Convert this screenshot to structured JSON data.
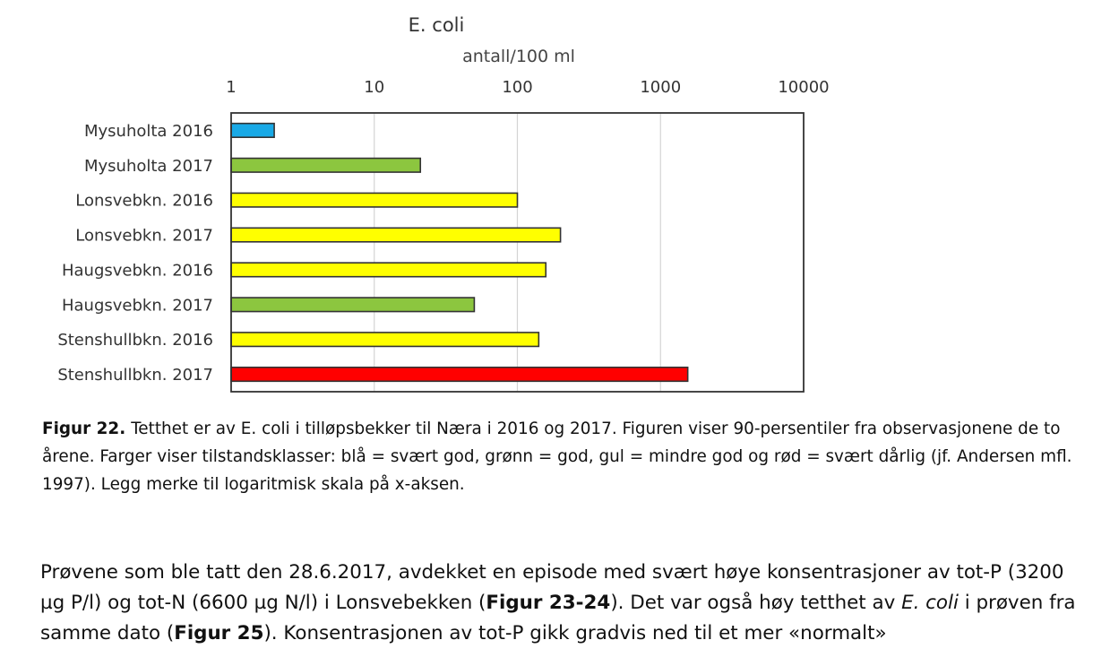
{
  "chart_data": {
    "type": "bar",
    "orientation": "horizontal",
    "title": "E. coli",
    "xlabel": "antall/100 ml",
    "ylabel": "",
    "xscale": "log",
    "xlim": [
      1,
      10000
    ],
    "x_ticks": [
      "1",
      "10",
      "100",
      "1000",
      "10000"
    ],
    "x_tick_values": [
      1,
      10,
      100,
      1000,
      10000
    ],
    "grid": "vertical",
    "legend": "none",
    "categories": [
      "Mysuholta 2016",
      "Mysuholta 2017",
      "Lonsvebkn. 2016",
      "Lonsvebkn. 2017",
      "Haugsvebkn. 2016",
      "Haugsvebkn. 2017",
      "Stenshullbkn. 2016",
      "Stenshullbkn. 2017"
    ],
    "values": [
      2,
      21,
      100,
      200,
      158,
      50,
      141,
      1550
    ],
    "status_classes": [
      "blå",
      "grønn",
      "gul",
      "gul",
      "gul",
      "grønn",
      "gul",
      "rød"
    ],
    "colors": [
      "#19a9e6",
      "#8cc63f",
      "#ffff00",
      "#ffff00",
      "#ffff00",
      "#8cc63f",
      "#ffff00",
      "#ff0000"
    ]
  },
  "caption": {
    "label": "Figur 22.",
    "text": "Tetthet er av E. coli i tilløpsbekker til Næra i 2016 og 2017. Figuren viser 90-persentiler fra observasjonene de to årene. Farger viser tilstandsklasser: blå = svært god, grønn = god, gul = mindre god og rød = svært dårlig (jf. Andersen mfl. 1997). Legg merke til logaritmisk skala på x-aksen."
  },
  "paragraph": {
    "part1": "Prøvene som ble tatt den 28.6.2017, avdekket en episode med svært høye konsentrasjoner av tot-P (3200 µg P/l) og tot-N (6600 µg N/l) i Lonsvebekken (",
    "ref1": "Figur 23-24",
    "part2": "). Det var også høy tetthet av ",
    "italic": "E. coli",
    "part3": " i prøven fra samme dato (",
    "ref2": "Figur 25",
    "part4": "). Konsentrasjonen av tot-P gikk gradvis ned til et mer «normalt»"
  }
}
